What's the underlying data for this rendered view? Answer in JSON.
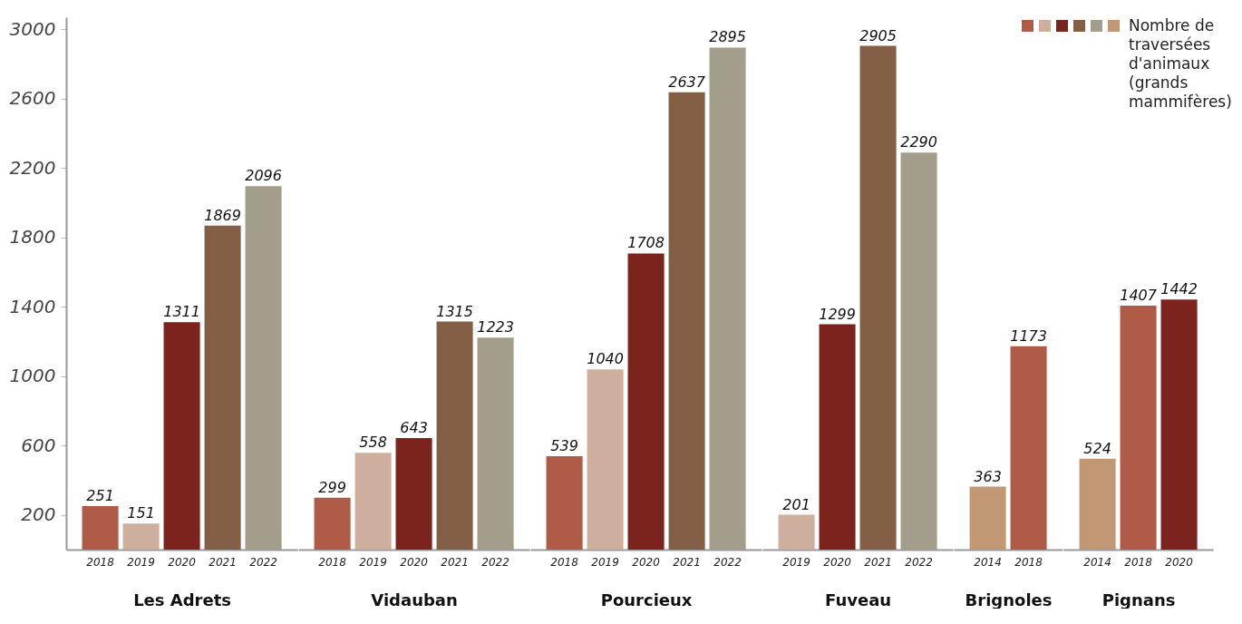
{
  "chart_data": [
    {
      "type": "bar",
      "xlabel": "Les Adrets",
      "categories": [
        "2018",
        "2019",
        "2020",
        "2021",
        "2022"
      ],
      "values": [
        251,
        151,
        1311,
        1869,
        2096
      ],
      "colors": [
        "#b05a48",
        "#ceae9c",
        "#7d231e",
        "#835f45",
        "#a39d8c"
      ],
      "data_labels": true,
      "ylim": [
        0,
        3070
      ],
      "yticks": [
        200,
        600,
        1000,
        1400,
        1800,
        2200,
        2600,
        3000
      ]
    },
    {
      "type": "bar",
      "xlabel": "Vidauban",
      "categories": [
        "2018",
        "2019",
        "2020",
        "2021",
        "2022"
      ],
      "values": [
        299,
        558,
        643,
        1315,
        1223
      ],
      "colors": [
        "#b05a48",
        "#ceae9c",
        "#7d231e",
        "#835f45",
        "#a39d8c"
      ],
      "data_labels": true,
      "tick_labels": "x"
    },
    {
      "type": "bar",
      "xlabel": "Pourcieux",
      "categories": [
        "2018",
        "2019",
        "2020",
        "2021",
        "2022"
      ],
      "values": [
        539,
        1040,
        1708,
        2637,
        2895
      ],
      "colors": [
        "#b05a48",
        "#ceae9c",
        "#7d231e",
        "#835f45",
        "#a39d8c"
      ],
      "data_labels": true,
      "tick_labels": "x"
    },
    {
      "type": "bar",
      "xlabel": "Fuveau",
      "categories": [
        "2019",
        "2020",
        "2021",
        "2022"
      ],
      "values": [
        201,
        1299,
        2905,
        2290
      ],
      "colors": [
        "#ceae9c",
        "#7d231e",
        "#835f45",
        "#a39d8c"
      ],
      "data_labels": true,
      "tick_labels": "x"
    },
    {
      "type": "bar",
      "xlabel": "Brignoles",
      "categories": [
        "2014",
        "2018"
      ],
      "values": [
        363,
        1173
      ],
      "colors": [
        "#c19774",
        "#b05a48"
      ],
      "data_labels": true,
      "tick_labels": "x"
    },
    {
      "type": "bar",
      "xlabel": "Pignans",
      "categories": [
        "2014",
        "2018",
        "2020"
      ],
      "values": [
        524,
        1407,
        1442
      ],
      "colors": [
        "#c19774",
        "#b05a48",
        "#7d231e"
      ],
      "data_labels": true,
      "tick_labels": "x",
      "legend_title": "Nombre de traversées d'animaux (grands mammifères)"
    }
  ]
}
